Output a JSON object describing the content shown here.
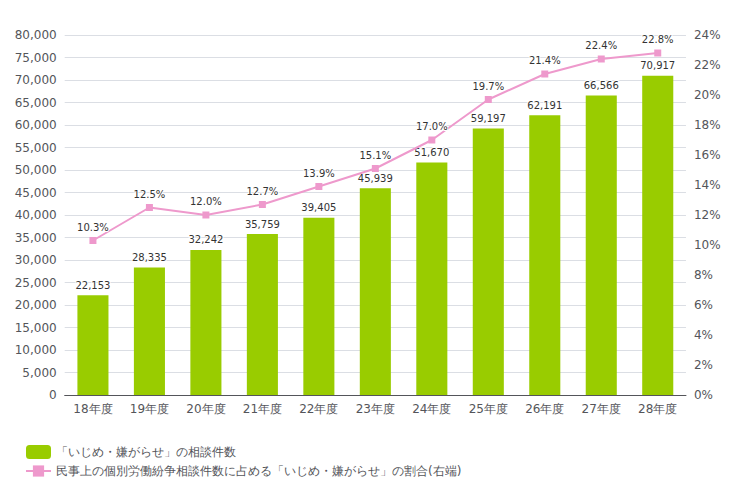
{
  "chart_data": {
    "type": "bar",
    "categories": [
      "18年度",
      "19年度",
      "20年度",
      "21年度",
      "22年度",
      "23年度",
      "24年度",
      "25年度",
      "26年度",
      "27年度",
      "28年度"
    ],
    "series": [
      {
        "name": "「いじめ・嫌がらせ」の相談件数",
        "type": "bar",
        "color": "#99cc00",
        "values": [
          22153,
          28335,
          32242,
          35759,
          39405,
          45939,
          51670,
          59197,
          62191,
          66566,
          70917
        ],
        "value_labels": [
          "22,153",
          "28,335",
          "32,242",
          "35,759",
          "39,405",
          "45,939",
          "51,670",
          "59,197",
          "62,191",
          "66,566",
          "70,917"
        ]
      },
      {
        "name": "民事上の個別労働紛争相談件数に占める「いじめ・嫌がらせ」の割合(右端)",
        "type": "line",
        "axis": "y2",
        "color": "#ee99cc",
        "marker": "square",
        "values": [
          10.3,
          12.5,
          12.0,
          12.7,
          13.9,
          15.1,
          17.0,
          19.7,
          21.4,
          22.4,
          22.8
        ],
        "value_labels": [
          "10.3%",
          "12.5%",
          "12.0%",
          "12.7%",
          "13.9%",
          "15.1%",
          "17.0%",
          "19.7%",
          "21.4%",
          "22.4%",
          "22.8%"
        ]
      }
    ],
    "ylim": [
      0,
      80000
    ],
    "yticks": [
      0,
      {
        "value": 5000,
        "label": "5,000"
      },
      {
        "value": 10000,
        "label": "10,000"
      },
      {
        "value": 15000,
        "label": "15,000"
      },
      {
        "value": 20000,
        "label": "20,000"
      },
      {
        "value": 25000,
        "label": "25,000"
      },
      {
        "value": 30000,
        "label": "30,000"
      },
      {
        "value": 35000,
        "label": "35,000"
      },
      {
        "value": 40000,
        "label": "40,000"
      },
      {
        "value": 45000,
        "label": "45,000"
      },
      {
        "value": 50000,
        "label": "50,000"
      },
      {
        "value": 55000,
        "label": "55,000"
      },
      {
        "value": 60000,
        "label": "60,000"
      },
      {
        "value": 65000,
        "label": "65,000"
      },
      {
        "value": 70000,
        "label": "70,000"
      },
      {
        "value": 75000,
        "label": "75,000"
      },
      {
        "value": 80000,
        "label": "80,000"
      }
    ],
    "y2lim": [
      0,
      24
    ],
    "y2ticks": [
      {
        "value": 0,
        "label": "0%"
      },
      {
        "value": 2,
        "label": "2%"
      },
      {
        "value": 4,
        "label": "4%"
      },
      {
        "value": 6,
        "label": "6%"
      },
      {
        "value": 8,
        "label": "8%"
      },
      {
        "value": 10,
        "label": "10%"
      },
      {
        "value": 12,
        "label": "12%"
      },
      {
        "value": 14,
        "label": "14%"
      },
      {
        "value": 16,
        "label": "16%"
      },
      {
        "value": 18,
        "label": "18%"
      },
      {
        "value": 20,
        "label": "20%"
      },
      {
        "value": 22,
        "label": "22%"
      },
      {
        "value": 24,
        "label": "24%"
      }
    ],
    "grid": true,
    "legend": "bottom",
    "data_labels": true
  }
}
